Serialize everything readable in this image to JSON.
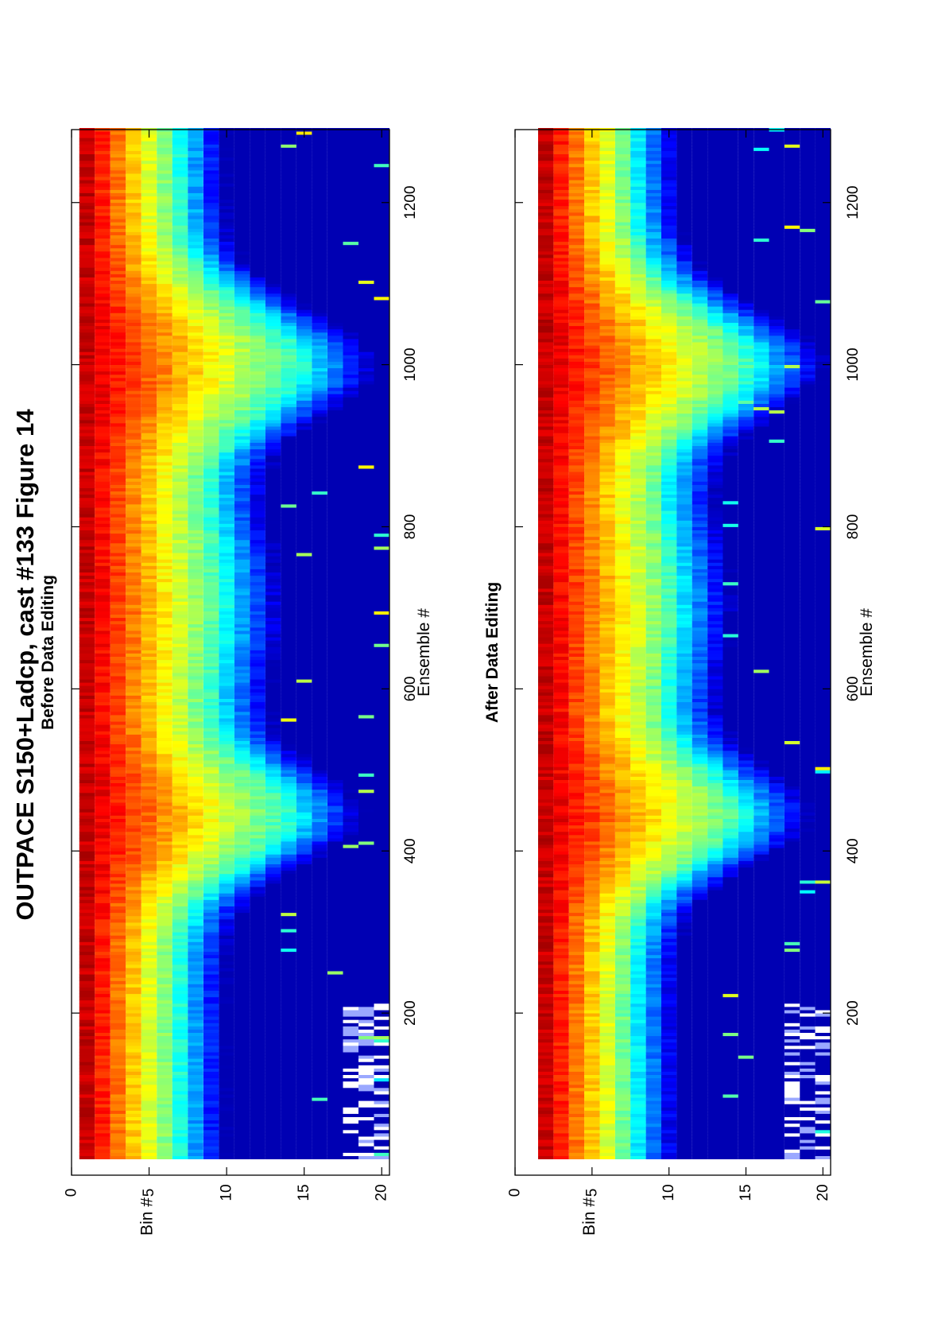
{
  "chart_data": {
    "title": "OUTPACE S150+Ladcp, cast #133  Figure 14",
    "orientation": "rotated-90-ccw",
    "colormap": "jet",
    "panels": [
      {
        "type": "heatmap",
        "subtitle": "Before Data Editing",
        "xlabel": "Ensemble #",
        "ylabel": "Bin #",
        "xlim": [
          0,
          1290
        ],
        "ylim": [
          0,
          20.5
        ],
        "xticks": [
          200,
          400,
          600,
          800,
          1000,
          1200
        ],
        "yticks": [
          0,
          5,
          10,
          15,
          20
        ],
        "first_valid_bin": 1,
        "grid": false
      },
      {
        "type": "heatmap",
        "subtitle": "After Data Editing",
        "xlabel": "Ensemble #",
        "ylabel": "Bin #",
        "xlim": [
          0,
          1290
        ],
        "ylim": [
          0,
          20.5
        ],
        "xticks": [
          200,
          400,
          600,
          800,
          1000,
          1200
        ],
        "yticks": [
          0,
          5,
          10,
          15,
          20
        ],
        "first_valid_bin": 2,
        "grid": false
      }
    ]
  }
}
